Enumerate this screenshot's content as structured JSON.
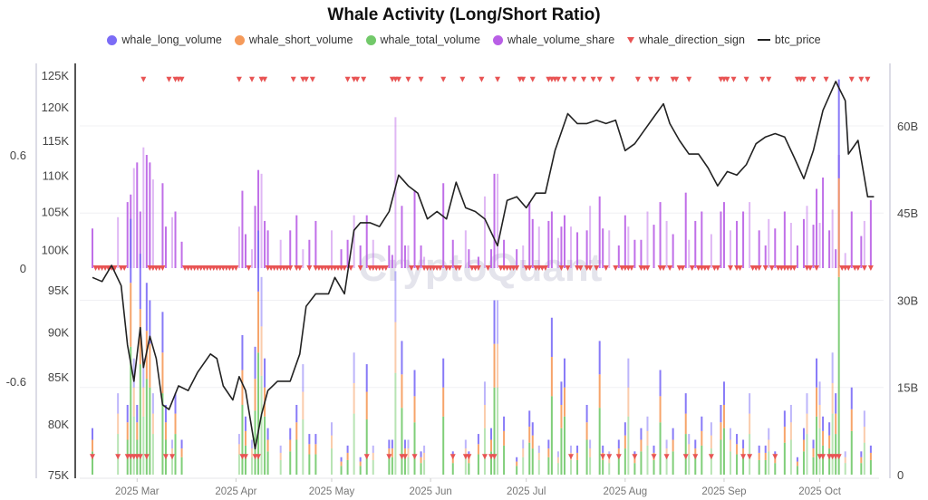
{
  "chart_data": {
    "type": "bar",
    "title": "Whale Activity (Long/Short Ratio)",
    "legend": [
      {
        "name": "whale_long_volume",
        "color": "#7b6cf6",
        "marker": "circle"
      },
      {
        "name": "whale_short_volume",
        "color": "#f59a5a",
        "marker": "circle"
      },
      {
        "name": "whale_total_volume",
        "color": "#72c96a",
        "marker": "circle"
      },
      {
        "name": "whale_volume_share",
        "color": "#b95fe6",
        "marker": "circle"
      },
      {
        "name": "whale_direction_sign",
        "color": "#e85454",
        "marker": "triangle-down"
      },
      {
        "name": "btc_price",
        "color": "#222222",
        "marker": "line"
      }
    ],
    "legend_position": "top",
    "watermark": "CryptoQuant",
    "x_start_date": "2025-02-15",
    "x_ticks": [
      {
        "day": 14,
        "label": "2025 Mar"
      },
      {
        "day": 45,
        "label": "2025 Apr"
      },
      {
        "day": 75,
        "label": "2025 May"
      },
      {
        "day": 106,
        "label": "2025 Jun"
      },
      {
        "day": 136,
        "label": "2025 Jul"
      },
      {
        "day": 167,
        "label": "2025 Aug"
      },
      {
        "day": 198,
        "label": "2025 Sep"
      },
      {
        "day": 228,
        "label": "2025 Oct"
      }
    ],
    "x_range_days": [
      0,
      245
    ],
    "price_axis": {
      "scale": "log",
      "range": [
        75000,
        125000
      ],
      "ticks": [
        "125K",
        "120K",
        "115K",
        "110K",
        "105K",
        "100K",
        "95K",
        "90K",
        "85K",
        "80K",
        "75K"
      ],
      "tick_values": [
        125000,
        120000,
        115000,
        110000,
        105000,
        100000,
        95000,
        90000,
        85000,
        80000,
        75000
      ]
    },
    "ratio_axis": {
      "range": [
        -1.06,
        1.2
      ],
      "ticks": [
        "0.6",
        "0",
        "-0.6"
      ],
      "tick_values": [
        0.6,
        0,
        -0.6
      ]
    },
    "volume_axis": {
      "unit": "B",
      "range": [
        0,
        66
      ],
      "ticks": [
        "60B",
        "45B",
        "30B",
        "15B",
        "0"
      ],
      "tick_values": [
        60,
        45,
        30,
        15,
        0
      ]
    },
    "grid": true,
    "btc_price": [
      [
        0,
        96500
      ],
      [
        3,
        96000
      ],
      [
        6,
        98000
      ],
      [
        9,
        95500
      ],
      [
        11,
        88500
      ],
      [
        13,
        84500
      ],
      [
        15,
        90500
      ],
      [
        16,
        86000
      ],
      [
        18,
        89500
      ],
      [
        20,
        87000
      ],
      [
        22,
        82000
      ],
      [
        24,
        81500
      ],
      [
        27,
        84000
      ],
      [
        30,
        83500
      ],
      [
        33,
        85500
      ],
      [
        37,
        87500
      ],
      [
        39,
        87000
      ],
      [
        41,
        84000
      ],
      [
        44,
        82500
      ],
      [
        46,
        85000
      ],
      [
        48,
        83500
      ],
      [
        51,
        77500
      ],
      [
        53,
        81000
      ],
      [
        55,
        83500
      ],
      [
        58,
        84500
      ],
      [
        62,
        84500
      ],
      [
        65,
        87500
      ],
      [
        67,
        93000
      ],
      [
        70,
        94500
      ],
      [
        74,
        94500
      ],
      [
        76,
        96500
      ],
      [
        79,
        94500
      ],
      [
        82,
        102500
      ],
      [
        84,
        103500
      ],
      [
        87,
        103500
      ],
      [
        90,
        103000
      ],
      [
        93,
        105000
      ],
      [
        96,
        110000
      ],
      [
        99,
        108500
      ],
      [
        102,
        107500
      ],
      [
        105,
        104000
      ],
      [
        108,
        105000
      ],
      [
        111,
        104000
      ],
      [
        114,
        109000
      ],
      [
        117,
        105500
      ],
      [
        120,
        105000
      ],
      [
        123,
        104000
      ],
      [
        127,
        100500
      ],
      [
        130,
        106500
      ],
      [
        133,
        107000
      ],
      [
        136,
        105500
      ],
      [
        139,
        107500
      ],
      [
        142,
        107500
      ],
      [
        145,
        113500
      ],
      [
        149,
        119000
      ],
      [
        152,
        117500
      ],
      [
        155,
        117500
      ],
      [
        158,
        118000
      ],
      [
        161,
        117500
      ],
      [
        164,
        118000
      ],
      [
        167,
        113500
      ],
      [
        170,
        114500
      ],
      [
        173,
        116500
      ],
      [
        176,
        118500
      ],
      [
        179,
        120500
      ],
      [
        181,
        117500
      ],
      [
        184,
        115000
      ],
      [
        187,
        113000
      ],
      [
        190,
        113000
      ],
      [
        193,
        111000
      ],
      [
        196,
        108500
      ],
      [
        199,
        110500
      ],
      [
        202,
        110000
      ],
      [
        205,
        111500
      ],
      [
        208,
        114500
      ],
      [
        211,
        115500
      ],
      [
        214,
        116000
      ],
      [
        217,
        115500
      ],
      [
        220,
        112500
      ],
      [
        223,
        109500
      ],
      [
        226,
        113500
      ],
      [
        229,
        119500
      ],
      [
        233,
        124000
      ],
      [
        236,
        121000
      ],
      [
        237,
        113000
      ],
      [
        240,
        115000
      ],
      [
        243,
        107000
      ],
      [
        245,
        107000
      ]
    ],
    "volume_entries_columns": [
      "day",
      "whale_volume_share",
      "whale_long_volume_B",
      "whale_short_volume_B",
      "whale_total_volume_B"
    ],
    "volume_entries": [
      [
        0,
        0.21,
        2,
        2,
        4
      ],
      [
        8,
        0.27,
        3.5,
        3.5,
        7
      ],
      [
        11,
        0.35,
        3,
        3,
        6
      ],
      [
        12,
        0.39,
        11,
        11,
        22
      ],
      [
        13,
        0.53,
        5,
        5,
        10
      ],
      [
        14,
        0.56,
        3,
        3,
        6
      ],
      [
        15,
        0.3,
        9.5,
        9.5,
        19
      ],
      [
        16,
        0.64,
        5,
        5,
        10
      ],
      [
        17,
        0.6,
        8.25,
        8.25,
        16.5
      ],
      [
        18,
        0.56,
        7.5,
        7.5,
        15
      ],
      [
        19,
        0.47,
        3.5,
        3.5,
        7
      ],
      [
        22,
        0.45,
        7,
        7,
        14
      ],
      [
        23,
        0.22,
        3,
        3,
        6
      ],
      [
        25,
        0.27,
        1.5,
        1.5,
        3
      ],
      [
        26,
        0.3,
        3.5,
        3.5,
        7
      ],
      [
        28,
        0.14,
        1.5,
        1.5,
        3
      ],
      [
        46,
        0.22,
        1.75,
        1.75,
        3.5
      ],
      [
        47,
        0.41,
        6,
        6,
        12
      ],
      [
        48,
        0.18,
        2.5,
        2.5,
        5
      ],
      [
        50,
        0.1,
        1.5,
        1.5,
        3
      ],
      [
        51,
        0.33,
        5.5,
        5.5,
        11
      ],
      [
        52,
        0.52,
        10.5,
        10.5,
        21
      ],
      [
        53,
        0.5,
        8.5,
        8.5,
        17
      ],
      [
        54,
        0.25,
        5,
        5,
        10
      ],
      [
        55,
        0.2,
        2,
        2,
        4
      ],
      [
        59,
        0.15,
        1.25,
        1.25,
        2.5
      ],
      [
        62,
        0.2,
        2,
        2,
        4
      ],
      [
        64,
        0.28,
        3,
        3,
        6
      ],
      [
        66,
        0.1,
        4.75,
        4.75,
        9.5
      ],
      [
        68,
        0.15,
        1.75,
        1.75,
        3.5
      ],
      [
        70,
        0.25,
        1.75,
        1.75,
        3.5
      ],
      [
        75,
        0.2,
        2.25,
        2.25,
        4.5
      ],
      [
        78,
        0.1,
        0.75,
        0.75,
        1.5
      ],
      [
        80,
        0.15,
        1.25,
        1.25,
        2.5
      ],
      [
        82,
        0.28,
        5.25,
        5.25,
        10.5
      ],
      [
        84,
        0.12,
        0.75,
        0.75,
        1.5
      ],
      [
        86,
        0.28,
        4.75,
        4.75,
        9.5
      ],
      [
        88,
        0.15,
        1.25,
        1.25,
        2.5
      ],
      [
        93,
        0.12,
        1.5,
        1.5,
        3
      ],
      [
        94,
        0.07,
        1.5,
        1.5,
        3
      ],
      [
        95,
        0.8,
        8.75,
        8.75,
        17.5
      ],
      [
        97,
        0.33,
        5.75,
        5.75,
        11.5
      ],
      [
        98,
        0.12,
        1.5,
        1.5,
        3
      ],
      [
        99,
        0.12,
        1.5,
        1.5,
        3
      ],
      [
        101,
        0.41,
        4.5,
        4.5,
        9
      ],
      [
        103,
        0.12,
        1,
        1,
        2
      ],
      [
        104,
        0.06,
        1.25,
        1.25,
        2.5
      ],
      [
        110,
        0.45,
        5,
        5,
        10
      ],
      [
        113,
        0.15,
        1,
        1,
        2
      ],
      [
        117,
        0.2,
        1.5,
        1.5,
        3
      ],
      [
        118,
        0.1,
        1,
        1,
        2
      ],
      [
        121,
        0.06,
        1.75,
        1.75,
        3.5
      ],
      [
        123,
        0.38,
        4,
        4,
        8
      ],
      [
        125,
        0.1,
        2,
        2,
        4
      ],
      [
        126,
        0.5,
        7.5,
        7.5,
        15
      ],
      [
        127,
        0.5,
        7.5,
        7.5,
        15
      ],
      [
        129,
        0.15,
        2.5,
        2.5,
        5
      ],
      [
        133,
        0.1,
        0.75,
        0.75,
        1.5
      ],
      [
        135,
        0.12,
        1.5,
        1.5,
        3
      ],
      [
        137,
        0.35,
        2.75,
        2.75,
        5.5
      ],
      [
        138,
        0.26,
        2.25,
        2.25,
        4.5
      ],
      [
        140,
        0.22,
        1.25,
        1.25,
        2.5
      ],
      [
        143,
        0.25,
        1.5,
        1.5,
        3
      ],
      [
        144,
        0.3,
        6.75,
        6.75,
        13.5
      ],
      [
        146,
        0.16,
        1,
        1,
        2
      ],
      [
        147,
        0.22,
        4,
        4,
        8
      ],
      [
        148,
        0.28,
        5,
        5,
        10
      ],
      [
        150,
        0.22,
        1.25,
        1.25,
        2.5
      ],
      [
        152,
        0.19,
        1.25,
        1.25,
        2.5
      ],
      [
        155,
        0.2,
        3,
        3,
        6
      ],
      [
        156,
        0.33,
        1.5,
        1.5,
        3
      ],
      [
        159,
        0.38,
        5.75,
        5.75,
        11.5
      ],
      [
        160,
        0.21,
        1.25,
        1.25,
        2.5
      ],
      [
        162,
        0.2,
        1,
        1,
        2
      ],
      [
        165,
        0.12,
        1.5,
        1.5,
        3
      ],
      [
        167,
        0.28,
        2.25,
        2.25,
        4.5
      ],
      [
        168,
        0.22,
        5,
        5,
        10
      ],
      [
        170,
        0.15,
        1,
        1,
        2
      ],
      [
        172,
        0.15,
        2,
        2,
        4
      ],
      [
        174,
        0.3,
        2.5,
        2.5,
        5
      ],
      [
        176,
        0.23,
        1.25,
        1.25,
        2.5
      ],
      [
        178,
        0.35,
        4.5,
        4.5,
        9
      ],
      [
        180,
        0.25,
        1.5,
        1.5,
        3
      ],
      [
        182,
        0.18,
        2,
        2,
        4
      ],
      [
        186,
        0.4,
        3.5,
        3.5,
        7
      ],
      [
        187,
        0.15,
        1.75,
        1.75,
        3.5
      ],
      [
        189,
        0.25,
        1.5,
        1.5,
        3
      ],
      [
        191,
        0.3,
        2.5,
        2.5,
        5
      ],
      [
        194,
        0.18,
        2.25,
        2.25,
        4.5
      ],
      [
        197,
        0.3,
        3,
        3,
        6
      ],
      [
        198,
        0.35,
        4,
        4,
        8
      ],
      [
        200,
        0.2,
        2,
        2,
        4
      ],
      [
        202,
        0.25,
        1.75,
        1.75,
        3.5
      ],
      [
        204,
        0.3,
        1.5,
        1.5,
        3
      ],
      [
        206,
        0.35,
        3.5,
        3.5,
        7
      ],
      [
        209,
        0.2,
        1.25,
        1.25,
        2.5
      ],
      [
        211,
        0.12,
        1.25,
        1.25,
        2.5
      ],
      [
        212,
        0.26,
        2,
        2,
        4
      ],
      [
        214,
        0.21,
        1,
        1,
        2
      ],
      [
        217,
        0.3,
        2.75,
        2.75,
        5.5
      ],
      [
        219,
        0.24,
        3,
        3,
        6
      ],
      [
        221,
        0.12,
        0.75,
        0.75,
        1.5
      ],
      [
        223,
        0.26,
        2,
        2,
        4
      ],
      [
        224,
        0.33,
        3.5,
        3.5,
        7
      ],
      [
        226,
        0.23,
        1.5,
        1.5,
        3
      ],
      [
        227,
        0.42,
        5,
        5,
        10
      ],
      [
        228,
        0.24,
        4,
        4,
        8
      ],
      [
        229,
        0.48,
        2.5,
        2.5,
        5
      ],
      [
        231,
        0.2,
        2.25,
        2.25,
        4.5
      ],
      [
        232,
        0.31,
        5.25,
        5.25,
        10.5
      ],
      [
        233,
        0.1,
        3.5,
        3.5,
        7
      ],
      [
        234,
        0.6,
        17,
        17,
        34
      ],
      [
        236,
        0.08,
        1,
        1,
        2
      ],
      [
        238,
        0.3,
        3.75,
        3.75,
        7.5
      ],
      [
        241,
        0.17,
        1,
        1,
        2
      ],
      [
        242,
        0.25,
        2.75,
        2.75,
        5.5
      ],
      [
        244,
        0.36,
        1.25,
        1.25,
        2.5
      ]
    ],
    "whale_direction_sign_positive_days": [
      16,
      24,
      26,
      27,
      28,
      46,
      50,
      53,
      54,
      63,
      66,
      67,
      69,
      80,
      82,
      83,
      85,
      94,
      95,
      96,
      99,
      103,
      110,
      116,
      122,
      127,
      134,
      135,
      138,
      143,
      144,
      145,
      146,
      148,
      151,
      154,
      157,
      159,
      163,
      171,
      175,
      177,
      182,
      183,
      187,
      197,
      198,
      199,
      201,
      205,
      210,
      212,
      221,
      222,
      223,
      226,
      230,
      238,
      241,
      243
    ],
    "whale_direction_sign_negative_days": [
      0,
      8,
      11,
      12,
      13,
      14,
      15,
      17,
      23,
      25,
      47,
      48,
      51,
      52,
      86,
      93,
      97,
      98,
      101,
      113,
      117,
      118,
      123,
      125,
      126,
      150,
      160,
      162,
      165,
      170,
      176,
      180,
      186,
      189,
      194,
      204,
      206,
      214,
      228,
      229,
      231,
      232,
      233,
      234
    ]
  }
}
